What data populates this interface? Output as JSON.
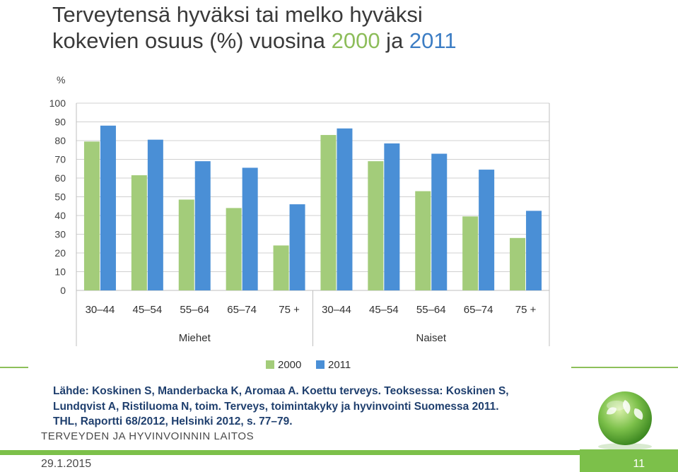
{
  "title": {
    "line1": "Terveytensä hyväksi tai melko hyväksi",
    "line2_prefix": "kokevien osuus (%) vuosina ",
    "year_a": "2000",
    "mid": " ja ",
    "year_b": "2011"
  },
  "chart_data": {
    "type": "bar",
    "ylabel": "%",
    "ylim": [
      0,
      100
    ],
    "yticks": [
      0,
      10,
      20,
      30,
      40,
      50,
      60,
      70,
      80,
      90,
      100
    ],
    "grid": true,
    "legend_position": "bottom",
    "groups": [
      "Miehet",
      "Naiset"
    ],
    "categories": [
      "30–44",
      "45–54",
      "55–64",
      "65–74",
      "75 +",
      "30–44",
      "45–54",
      "55–64",
      "65–74",
      "75 +"
    ],
    "series": [
      {
        "name": "2000",
        "color": "#a3cc7a",
        "values": [
          79.5,
          61.5,
          48.5,
          44,
          24,
          83,
          69,
          53,
          39.5,
          28
        ]
      },
      {
        "name": "2011",
        "color": "#4a8fd6",
        "values": [
          88,
          80.5,
          69,
          65.5,
          46,
          86.5,
          78.5,
          73,
          64.5,
          42.5
        ]
      }
    ]
  },
  "source": {
    "line1": "Lähde: Koskinen S, Manderbacka K, Aromaa A. Koettu terveys. Teoksessa: Koskinen S,",
    "line2": "Lundqvist A, Ristiluoma N, toim. Terveys, toimintakyky ja hyvinvointi Suomessa 2011.",
    "line3": "THL, Raportti 68/2012, Helsinki 2012, s. 77–79."
  },
  "footer": {
    "org": "TERVEYDEN JA HYVINVOINNIN LAITOS",
    "date": "29.1.2015",
    "page": "11"
  }
}
